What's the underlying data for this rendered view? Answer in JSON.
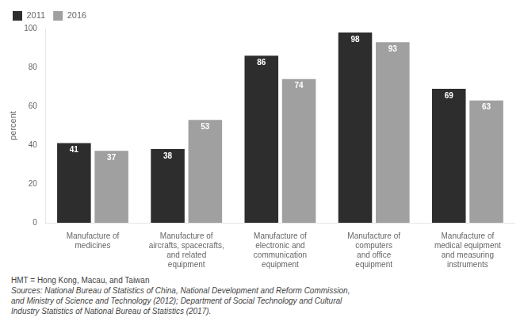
{
  "chart_data": {
    "type": "bar",
    "categories": [
      "Manufacture of\nmedicines",
      "Manufacture of\naircrafts, spacecrafts,\nand related\nequipment",
      "Manufacture of\nelectronic and\ncommunication\nequipment",
      "Manufacture of\ncomputers\nand office\nequipment",
      "Manufacture of\nmedical equipment\nand measuring\ninstruments"
    ],
    "series": [
      {
        "name": "2011",
        "color": "#2d2d2d",
        "values": [
          41,
          38,
          86,
          98,
          69
        ]
      },
      {
        "name": "2016",
        "color": "#a0a0a0",
        "values": [
          37,
          53,
          74,
          93,
          63
        ]
      }
    ],
    "ylabel": "percent",
    "ylim": [
      0,
      100
    ],
    "yticks": [
      0,
      20,
      40,
      60,
      80,
      100
    ],
    "grid": false,
    "legend": "upper left",
    "data_labels": true,
    "annotations": [
      "HMT = Hong Kong, Macau, and Taiwan",
      "Sources: National Bureau of Statistics of China, National Development and Reform Commission,",
      "and Ministry of Science and Technology (2012); Department of Social Technology and Cultural",
      "Industry Statistics of National Bureau of Statistics (2017)."
    ]
  }
}
